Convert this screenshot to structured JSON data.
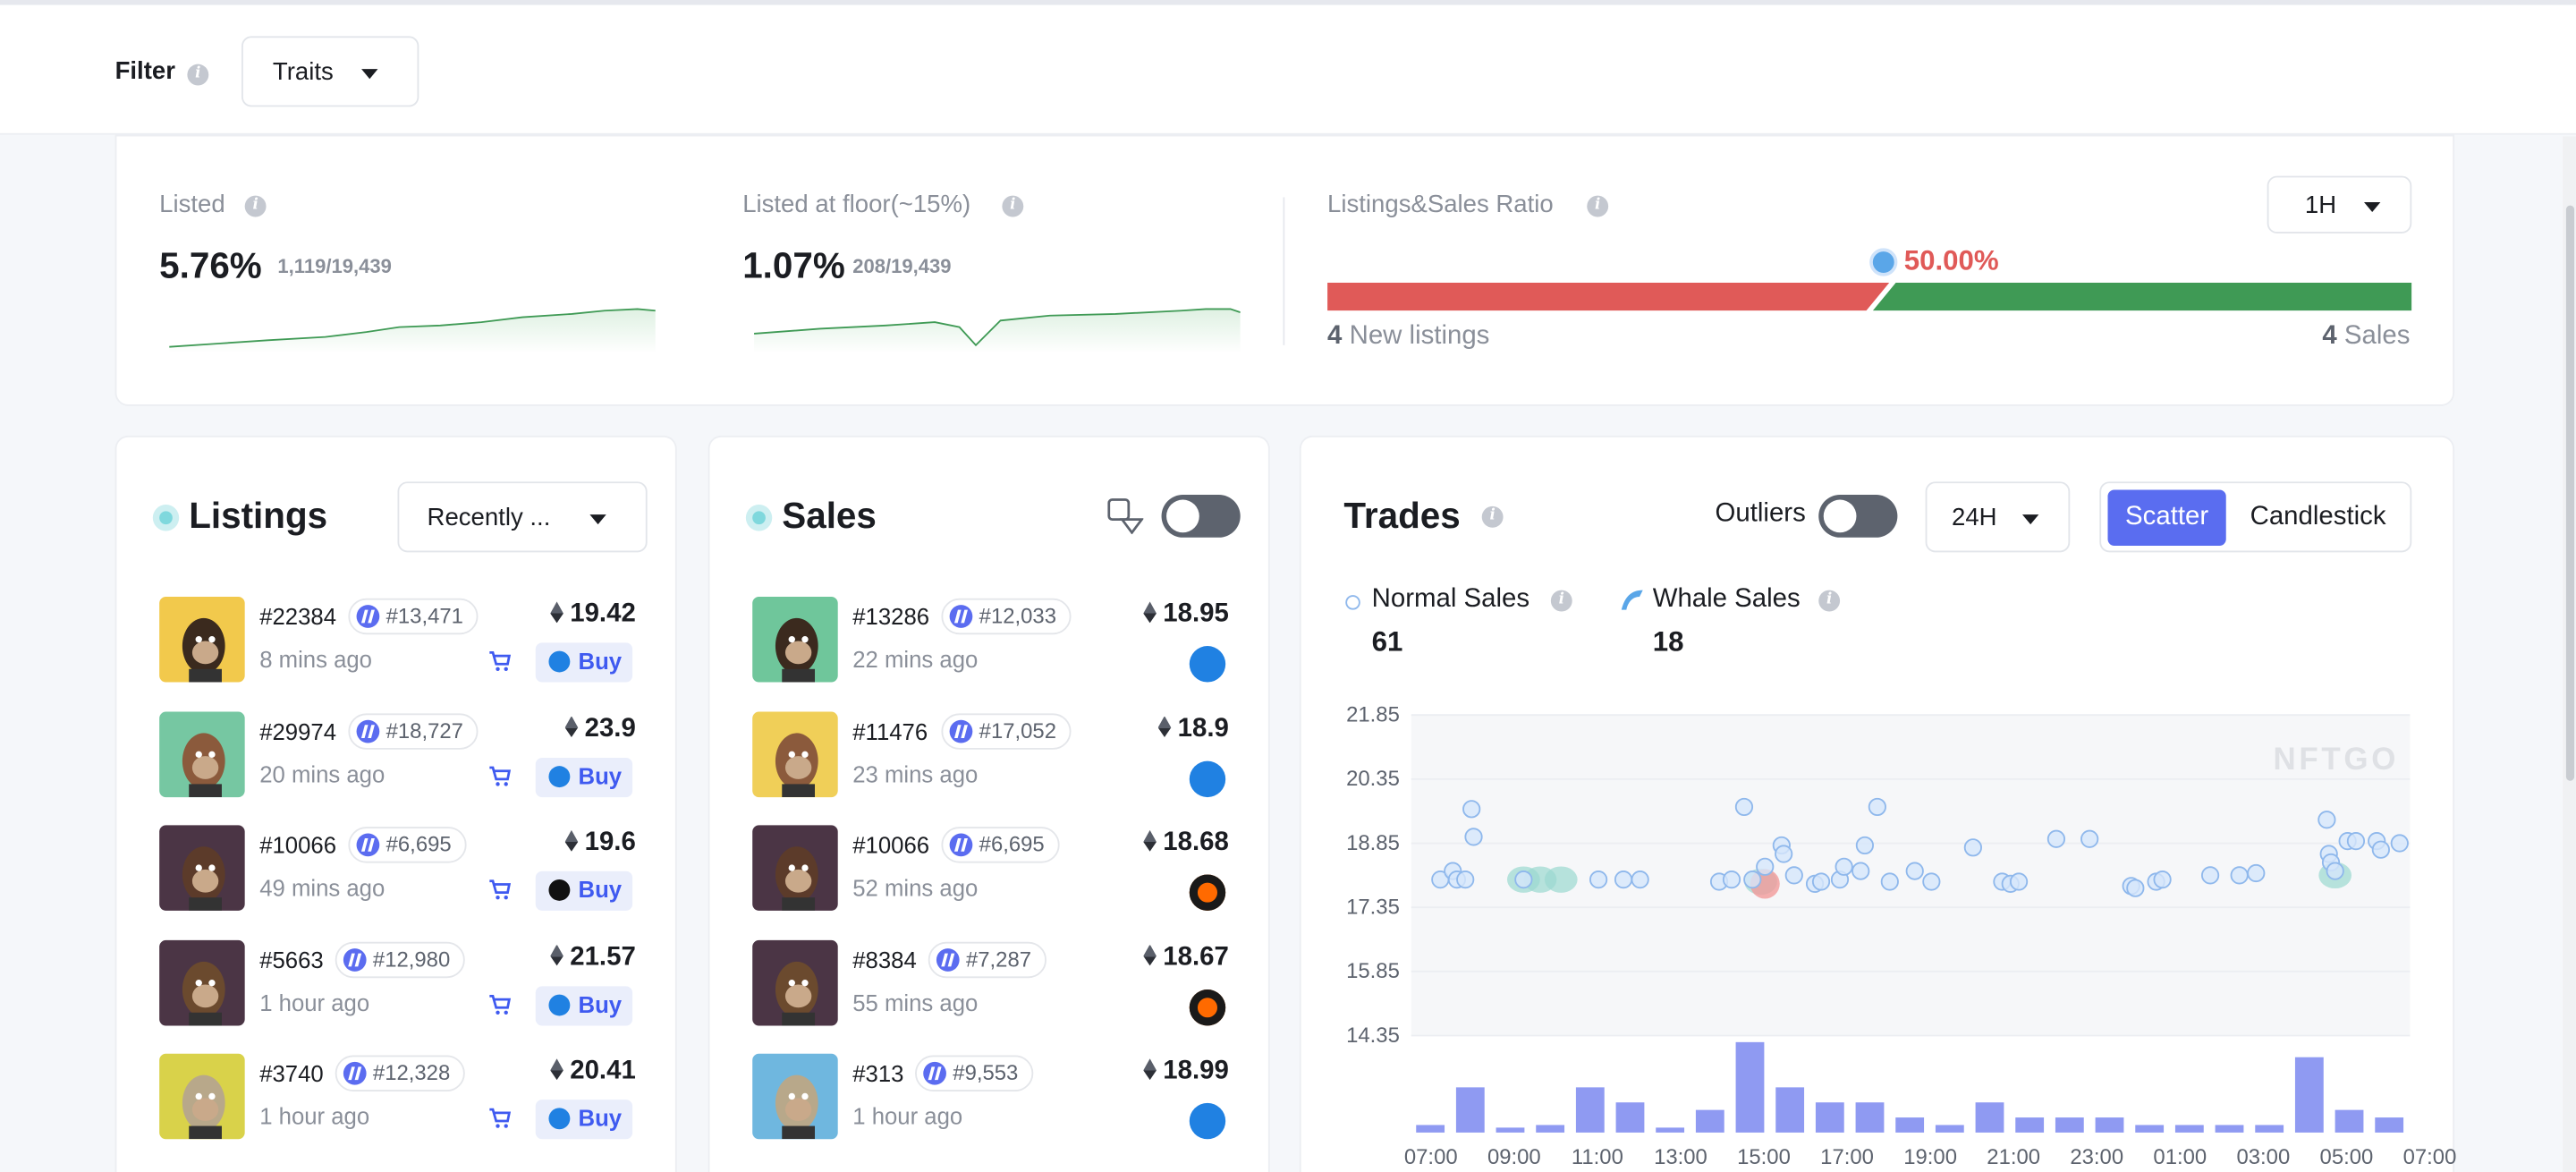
{
  "filter": {
    "label": "Filter",
    "traits": "Traits"
  },
  "stats": {
    "listed": {
      "title": "Listed",
      "value": "5.76%",
      "sub": "1,119/19,439"
    },
    "floor": {
      "title": "Listed at floor(~15%)",
      "value": "1.07%",
      "sub": "208/19,439"
    },
    "ratio": {
      "title": "Listings&Sales Ratio",
      "period": "1H",
      "percent": "50.00%",
      "new_count": "4",
      "new_label": "New listings",
      "sales_count": "4",
      "sales_label": "Sales",
      "listing_fraction": 0.5
    }
  },
  "listings": {
    "title": "Listings",
    "sort": "Recently ...",
    "buy_label": "Buy",
    "items": [
      {
        "id": "#22384",
        "rank": "#13,471",
        "ago": "8 mins ago",
        "price": "19.42",
        "market": "opensea"
      },
      {
        "id": "#29974",
        "rank": "#18,727",
        "ago": "20 mins ago",
        "price": "23.9",
        "market": "opensea"
      },
      {
        "id": "#10066",
        "rank": "#6,695",
        "ago": "49 mins ago",
        "price": "19.6",
        "market": "looksrare"
      },
      {
        "id": "#5663",
        "rank": "#12,980",
        "ago": "1 hour ago",
        "price": "21.57",
        "market": "opensea"
      },
      {
        "id": "#3740",
        "rank": "#12,328",
        "ago": "1 hour ago",
        "price": "20.41",
        "market": "opensea"
      }
    ]
  },
  "sales": {
    "title": "Sales",
    "items": [
      {
        "id": "#13286",
        "rank": "#12,033",
        "ago": "22 mins ago",
        "price": "18.95",
        "market": "opensea"
      },
      {
        "id": "#11476",
        "rank": "#17,052",
        "ago": "23 mins ago",
        "price": "18.9",
        "market": "opensea"
      },
      {
        "id": "#10066",
        "rank": "#6,695",
        "ago": "52 mins ago",
        "price": "18.68",
        "market": "blur"
      },
      {
        "id": "#8384",
        "rank": "#7,287",
        "ago": "55 mins ago",
        "price": "18.67",
        "market": "blur"
      },
      {
        "id": "#313",
        "rank": "#9,553",
        "ago": "1 hour ago",
        "price": "18.99",
        "market": "opensea"
      }
    ]
  },
  "trades": {
    "title": "Trades",
    "outliers_label": "Outliers",
    "period": "24H",
    "view_scatter": "Scatter",
    "view_candlestick": "Candlestick",
    "normal_label": "Normal Sales",
    "normal_count": "61",
    "whale_label": "Whale Sales",
    "whale_count": "18",
    "watermark": "NFTGO"
  },
  "colors": {
    "accent": "#5a6df0",
    "sell_red": "#e05a58",
    "buy_green": "#3f9a55",
    "scatter": "#8fb8ec",
    "bar": "#8f9af2"
  },
  "chart_data": {
    "type": "scatter",
    "y_ticks": [
      "21.85",
      "20.35",
      "18.85",
      "17.35",
      "15.85",
      "14.35"
    ],
    "ylim": [
      14.35,
      21.85
    ],
    "x_ticks": [
      "07:00",
      "09:00",
      "11:00",
      "13:00",
      "15:00",
      "17:00",
      "19:00",
      "21:00",
      "23:00",
      "01:00",
      "03:00",
      "05:00",
      "07:00"
    ],
    "points": [
      {
        "t": 0.7,
        "y": 18.0
      },
      {
        "t": 1.0,
        "y": 18.2
      },
      {
        "t": 1.1,
        "y": 18.0
      },
      {
        "t": 1.3,
        "y": 18.0
      },
      {
        "t": 1.45,
        "y": 19.65
      },
      {
        "t": 1.5,
        "y": 19.0
      },
      {
        "t": 2.7,
        "y": 18.0
      },
      {
        "t": 4.5,
        "y": 18.0
      },
      {
        "t": 5.1,
        "y": 18.0
      },
      {
        "t": 5.5,
        "y": 18.0
      },
      {
        "t": 7.4,
        "y": 17.95
      },
      {
        "t": 7.7,
        "y": 18.0
      },
      {
        "t": 8.0,
        "y": 19.7
      },
      {
        "t": 8.2,
        "y": 18.0
      },
      {
        "t": 8.5,
        "y": 18.3
      },
      {
        "t": 8.9,
        "y": 18.8
      },
      {
        "t": 8.95,
        "y": 18.6
      },
      {
        "t": 9.2,
        "y": 18.1
      },
      {
        "t": 9.7,
        "y": 17.9
      },
      {
        "t": 9.85,
        "y": 17.95
      },
      {
        "t": 10.3,
        "y": 18.0
      },
      {
        "t": 10.4,
        "y": 18.3
      },
      {
        "t": 10.8,
        "y": 18.2
      },
      {
        "t": 10.9,
        "y": 18.8
      },
      {
        "t": 11.2,
        "y": 19.7
      },
      {
        "t": 11.5,
        "y": 17.95
      },
      {
        "t": 12.1,
        "y": 18.2
      },
      {
        "t": 12.5,
        "y": 17.95
      },
      {
        "t": 13.5,
        "y": 18.75
      },
      {
        "t": 14.2,
        "y": 17.95
      },
      {
        "t": 14.4,
        "y": 17.9
      },
      {
        "t": 14.6,
        "y": 17.95
      },
      {
        "t": 15.5,
        "y": 18.95
      },
      {
        "t": 16.3,
        "y": 18.95
      },
      {
        "t": 17.3,
        "y": 17.85
      },
      {
        "t": 17.4,
        "y": 17.8
      },
      {
        "t": 17.9,
        "y": 17.95
      },
      {
        "t": 18.05,
        "y": 18.0
      },
      {
        "t": 19.2,
        "y": 18.1
      },
      {
        "t": 19.9,
        "y": 18.1
      },
      {
        "t": 20.3,
        "y": 18.15
      },
      {
        "t": 22.0,
        "y": 19.4
      },
      {
        "t": 22.05,
        "y": 18.6
      },
      {
        "t": 22.1,
        "y": 18.4
      },
      {
        "t": 22.2,
        "y": 18.2
      },
      {
        "t": 22.5,
        "y": 18.9
      },
      {
        "t": 22.7,
        "y": 18.9
      },
      {
        "t": 23.2,
        "y": 18.9
      },
      {
        "t": 23.3,
        "y": 18.7
      },
      {
        "t": 23.75,
        "y": 18.85
      }
    ],
    "whale_points": [
      {
        "t": 2.7,
        "y": 18.0
      },
      {
        "t": 3.1,
        "y": 18.0
      },
      {
        "t": 3.6,
        "y": 18.0
      },
      {
        "t": 8.4,
        "y": 17.95
      },
      {
        "t": 22.2,
        "y": 18.1
      }
    ],
    "volume_bars": [
      1,
      6,
      0,
      1,
      6,
      4,
      0,
      3,
      12,
      6,
      4,
      4,
      2,
      1,
      4,
      2,
      2,
      2,
      1,
      1,
      1,
      1,
      10,
      3,
      2
    ]
  }
}
